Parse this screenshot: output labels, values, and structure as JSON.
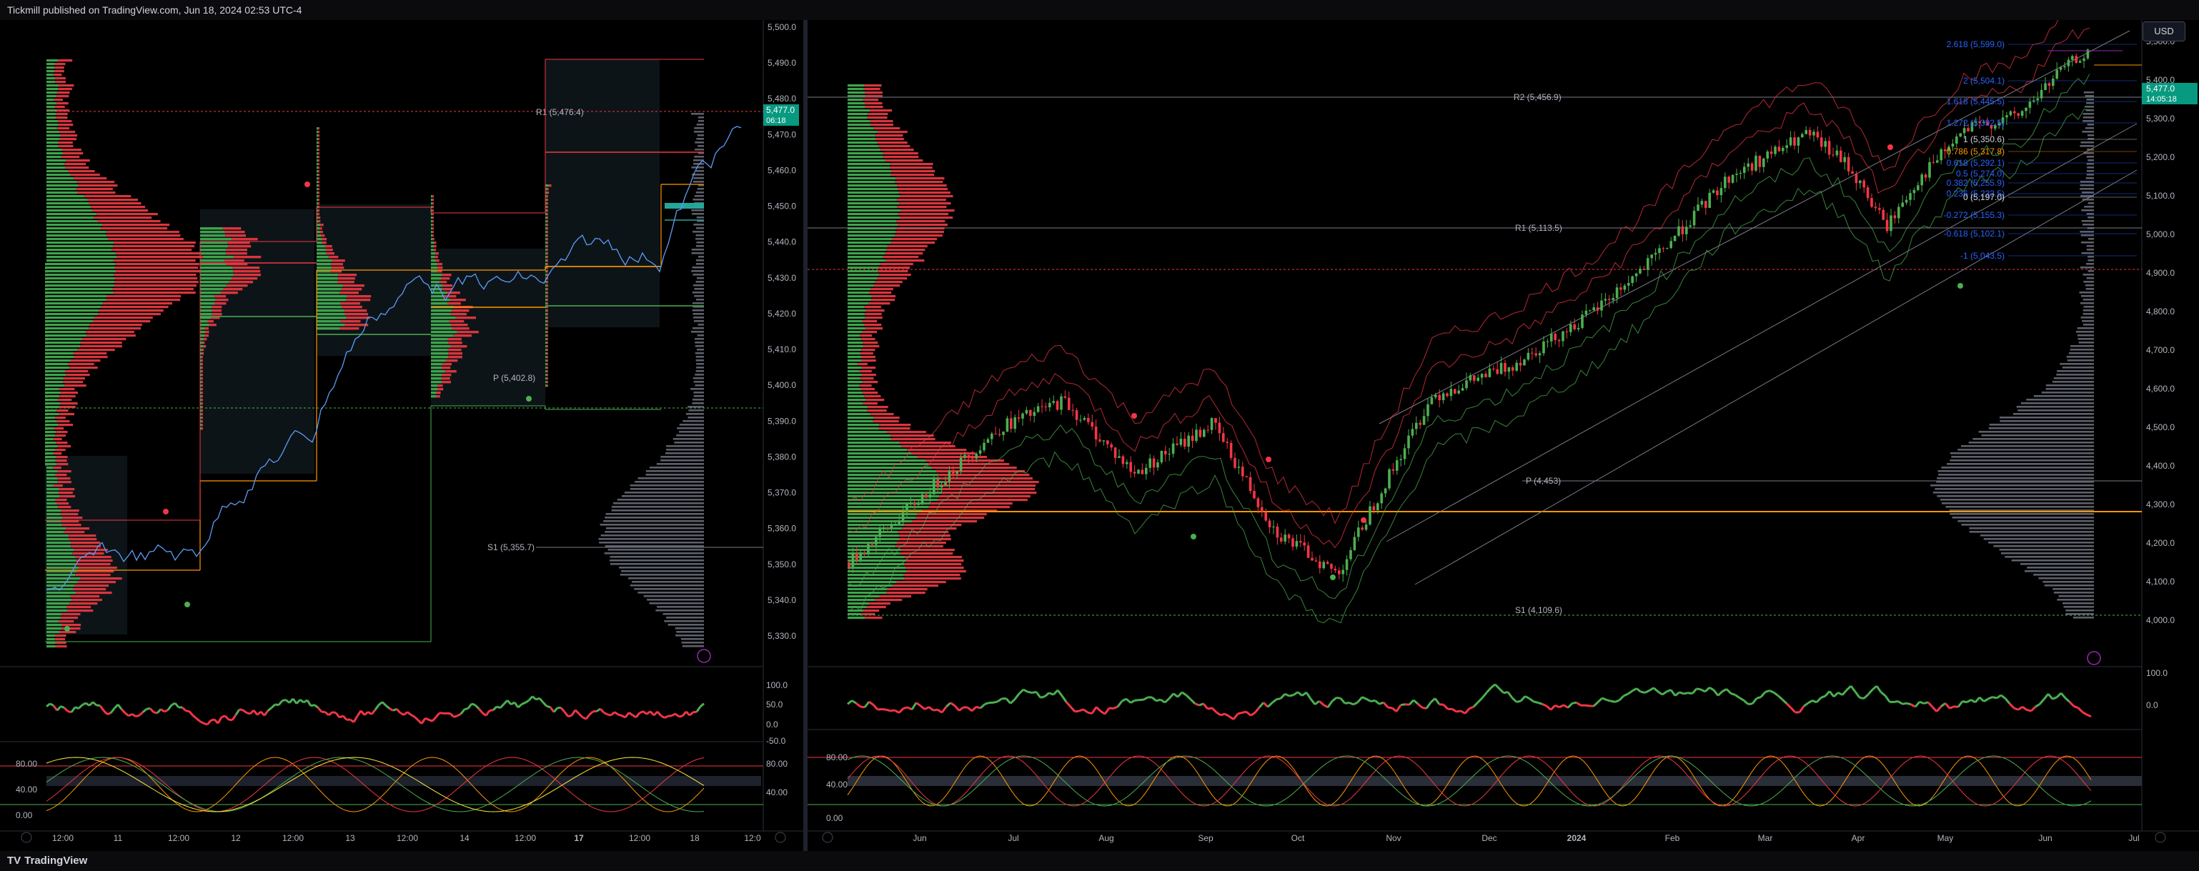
{
  "header": {
    "publisher_text": "Tickmill published on TradingView.com, Jun 18, 2024 02:53 UTC-4"
  },
  "footer": {
    "brand": "TradingView",
    "brand_icon": "tv-logo-icon"
  },
  "currency_button": "USD",
  "left_chart": {
    "price_ticks": [
      "5,500.0",
      "5,490.0",
      "5,480.0",
      "5,470.0",
      "5,460.0",
      "5,450.0",
      "5,440.0",
      "5,430.0",
      "5,420.0",
      "5,410.0",
      "5,400.0",
      "5,390.0",
      "5,380.0",
      "5,370.0",
      "5,360.0",
      "5,350.0",
      "5,340.0",
      "5,330.0"
    ],
    "time_ticks": [
      "12:00",
      "11",
      "12:00",
      "12",
      "12:00",
      "13",
      "12:00",
      "14",
      "12:00",
      "17",
      "12:00",
      "18",
      "12:0"
    ],
    "levels": {
      "r1": "R1 (5,476.4)",
      "p": "P (5,402.8)",
      "s1": "S1 (5,355.7)"
    },
    "last_price": "5,477.0",
    "countdown": "06:18",
    "osc1_ticks": [
      "100.0",
      "50.0",
      "0.0",
      "-50.0"
    ],
    "osc2_ticks": [
      "80.00",
      "40.00",
      "0.00"
    ],
    "osc2_right_ticks": [
      "80.00",
      "40.00"
    ]
  },
  "right_chart": {
    "price_ticks": [
      "5,500.0",
      "5,400.0",
      "5,300.0",
      "5,200.0",
      "5,100.0",
      "5,000.0",
      "4,900.0",
      "4,800.0",
      "4,700.0",
      "4,600.0",
      "4,500.0",
      "4,400.0",
      "4,300.0",
      "4,200.0",
      "4,100.0",
      "4,000.0"
    ],
    "time_ticks": [
      "Jun",
      "Jul",
      "Aug",
      "Sep",
      "Oct",
      "Nov",
      "Dec",
      "2024",
      "Feb",
      "Mar",
      "Apr",
      "May",
      "Jun",
      "Jul"
    ],
    "levels": {
      "r2": "R2 (5,456.9)",
      "r1": "R1 (5,113.5)",
      "p": "P (4,453)",
      "s1": "S1 (4,109.6)"
    },
    "fib_labels": [
      "2.618 (5,599.0)",
      "2 (5,504.1)",
      "1.618 (5,445.5)",
      "1.272 (5,392.5)",
      "1 (5,350.6)",
      "0.786 (5,317.8)",
      "0.618 (5,292.1)",
      "0.5 (5,274.0)",
      "0.382 (5,255.9)",
      "0.236 (5,233.5)",
      "0 (5,197.0)",
      "-0.272 (5,155.3)",
      "-0.618 (5,102.1)",
      "-1 (5,043.5)"
    ],
    "last_price": "5,477.0",
    "countdown": "14:05:18",
    "osc1_ticks": [
      "100.0",
      "0.0"
    ],
    "osc2_ticks": [
      "80.00",
      "40.00",
      "0.00"
    ]
  },
  "colors": {
    "up": "#4caf50",
    "down": "#f23645",
    "bg": "#000000",
    "grid": "#1e222d",
    "axis_text": "#b2b5be",
    "accent_orange": "#ff9800",
    "fib_blue": "#2962ff"
  }
}
